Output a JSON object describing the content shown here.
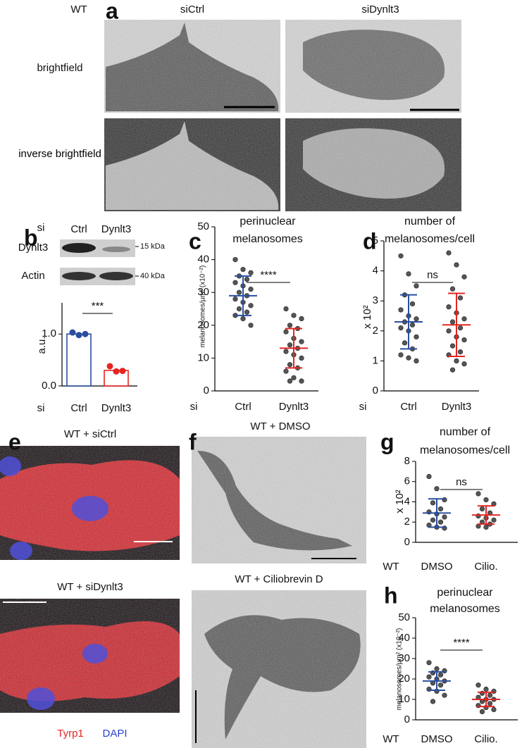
{
  "panels": {
    "a": "a",
    "b": "b",
    "c": "c",
    "d": "d",
    "e": "e",
    "f": "f",
    "g": "g",
    "h": "h"
  },
  "panel_a": {
    "genotype": "WT",
    "columns": [
      "siCtrl",
      "siDynlt3"
    ],
    "rows": [
      "brightfield",
      "inverse brightfield"
    ]
  },
  "panel_b_blot": {
    "prefix": "si",
    "lanes": [
      "Ctrl",
      "Dynlt3"
    ],
    "rows": [
      "Dynlt3",
      "Actin"
    ],
    "markers": [
      "15 kDa",
      "40 kDa"
    ]
  },
  "panel_e": {
    "top": "WT +  siCtrl",
    "bottom": "WT +  siDynlt3",
    "stains": [
      "Tyrp1",
      "DAPI"
    ]
  },
  "panel_f": {
    "top": "WT + DMSO",
    "bottom": "WT + Ciliobrevin D"
  },
  "chart_data": [
    {
      "type": "bar",
      "ylabel": "a.u.",
      "x_prefix": "si",
      "categories": [
        "Ctrl",
        "Dynlt3"
      ],
      "colors": [
        "#2a4fa0",
        "#e52421"
      ],
      "values": [
        1.0,
        0.3
      ],
      "points": [
        [
          1.03,
          0.98,
          1.0
        ],
        [
          0.38,
          0.28,
          0.29
        ]
      ],
      "ylim": [
        0,
        1.6
      ],
      "yticks": [
        {
          "value": 0,
          "label": "0.0"
        },
        {
          "value": 1,
          "label": "1.0"
        }
      ],
      "significance": "***"
    },
    {
      "type": "dot",
      "title": [
        "perinuclear",
        "melanosomes"
      ],
      "ylabel": "melanosomes/µm² (x10⁻²)",
      "x_prefix": "si",
      "categories": [
        "Ctrl",
        "Dynlt3"
      ],
      "colors": [
        "#2a4fa0",
        "#e52421"
      ],
      "points": [
        [
          40,
          37,
          36,
          35,
          34,
          33,
          32,
          31,
          30,
          29,
          28,
          27,
          26,
          25,
          24,
          23,
          22,
          20
        ],
        [
          25,
          23,
          22,
          20,
          19,
          18,
          16,
          15,
          14,
          13,
          12,
          11,
          10,
          8,
          7,
          6,
          4,
          3,
          3
        ]
      ],
      "means": [
        29,
        13
      ],
      "sds": [
        6,
        6
      ],
      "ylim": [
        0,
        50
      ],
      "yticks": [
        0,
        10,
        20,
        30,
        40,
        50
      ],
      "significance": "****"
    },
    {
      "type": "dot",
      "title": [
        "number of",
        "melanosomes/cell"
      ],
      "ylabel": "x 10²",
      "x_prefix": "si",
      "categories": [
        "Ctrl",
        "Dynlt3"
      ],
      "colors": [
        "#2a4fa0",
        "#e52421"
      ],
      "points": [
        [
          4.5,
          3.9,
          3.5,
          3.2,
          2.9,
          2.7,
          2.5,
          2.4,
          2.3,
          2.2,
          2.1,
          2.0,
          1.8,
          1.6,
          1.4,
          1.2,
          1.1,
          1.0
        ],
        [
          4.6,
          4.2,
          3.8,
          3.4,
          3.1,
          2.8,
          2.6,
          2.4,
          2.3,
          2.1,
          2.0,
          1.8,
          1.7,
          1.5,
          1.3,
          1.2,
          1.0,
          0.9,
          0.7
        ]
      ],
      "means": [
        2.3,
        2.2
      ],
      "sds": [
        0.9,
        1.05
      ],
      "ylim": [
        0,
        5
      ],
      "yticks": [
        0,
        1,
        2,
        3,
        4,
        5
      ],
      "significance": "ns"
    },
    {
      "type": "dot",
      "title": [
        "number of",
        "melanosomes/cell"
      ],
      "ylabel": "x 10²",
      "x_prefix": "WT",
      "categories": [
        "DMSO",
        "Cilio."
      ],
      "colors": [
        "#2a4fa0",
        "#e52421"
      ],
      "points": [
        [
          6.5,
          5.3,
          4.2,
          3.9,
          3.3,
          3.0,
          2.8,
          2.5,
          2.2,
          2.0,
          1.7,
          1.5,
          1.4
        ],
        [
          4.8,
          4.2,
          3.8,
          3.3,
          2.9,
          2.6,
          2.4,
          2.2,
          2.0,
          1.8,
          1.6,
          1.5
        ]
      ],
      "means": [
        2.9,
        2.7
      ],
      "sds": [
        1.4,
        0.9
      ],
      "ylim": [
        0,
        8
      ],
      "yticks": [
        0,
        2,
        4,
        6,
        8
      ],
      "significance": "ns"
    },
    {
      "type": "dot",
      "title": [
        "perinuclear",
        "melanosomes"
      ],
      "ylabel": "melanosomes/µm² (x10⁻²)",
      "x_prefix": "WT",
      "categories": [
        "DMSO",
        "Cilio."
      ],
      "colors": [
        "#2a4fa0",
        "#e52421"
      ],
      "points": [
        [
          28,
          25,
          24,
          23,
          22,
          21,
          20,
          19,
          18,
          17,
          15,
          14,
          12,
          9
        ],
        [
          17,
          15,
          14,
          13,
          12,
          11,
          10,
          10,
          9,
          8,
          7,
          6,
          5,
          4
        ]
      ],
      "means": [
        19,
        10
      ],
      "sds": [
        4.5,
        3.5
      ],
      "ylim": [
        0,
        50
      ],
      "yticks": [
        0,
        10,
        20,
        30,
        40,
        50
      ],
      "significance": "****"
    }
  ]
}
